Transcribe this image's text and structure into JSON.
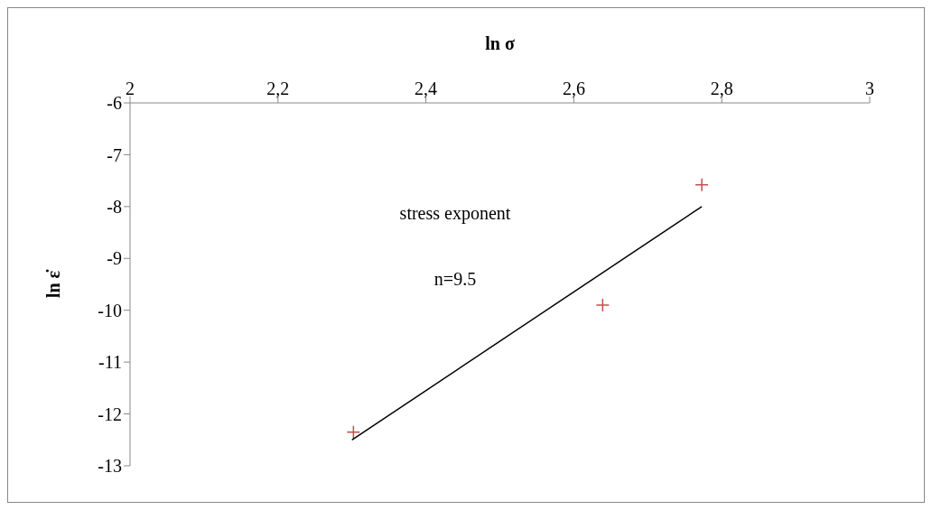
{
  "chart_data": {
    "type": "scatter",
    "xlabel": "ln σ",
    "ylabel": "ln ε̇",
    "xlim": [
      2,
      3
    ],
    "xticks": [
      {
        "value": 2,
        "label": "2"
      },
      {
        "value": 2.2,
        "label": "2,2"
      },
      {
        "value": 2.4,
        "label": "2,4"
      },
      {
        "value": 2.6,
        "label": "2,6"
      },
      {
        "value": 2.8,
        "label": "2,8"
      },
      {
        "value": 3,
        "label": "3"
      }
    ],
    "ylim": [
      -13,
      -6
    ],
    "yticks": [
      -13,
      -12,
      -11,
      -10,
      -9,
      -8,
      -7,
      -6
    ],
    "annotations": [
      "stress exponent",
      "n=9.5"
    ],
    "series": [
      {
        "marker": "cross",
        "color": "#c0504d",
        "x": [
          2.302,
          2.639,
          2.773
        ],
        "values": [
          -12.35,
          -9.9,
          -7.58
        ]
      },
      {
        "type": "line",
        "marker": "none",
        "line_style": "solid",
        "color": "#000000",
        "x": [
          2.3,
          2.773
        ],
        "values": [
          -12.5,
          -8.0
        ]
      }
    ]
  }
}
